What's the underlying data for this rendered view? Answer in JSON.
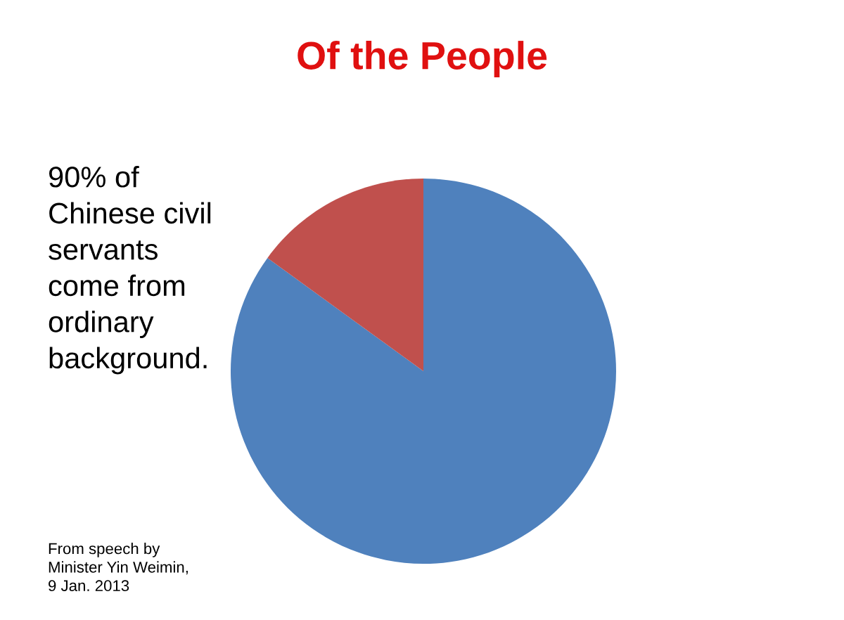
{
  "chart_data": {
    "type": "pie",
    "title": "Of the People",
    "categories": [
      null,
      null
    ],
    "values": [
      85,
      15
    ],
    "colors": [
      "#4f81bd",
      "#c0504d"
    ],
    "annotations": [
      "90% of\nChinese civil\nservants\ncome from\nordinary\nbackground.",
      "From speech by\nMinister Yin Weimin,\n9 Jan. 2013"
    ]
  }
}
